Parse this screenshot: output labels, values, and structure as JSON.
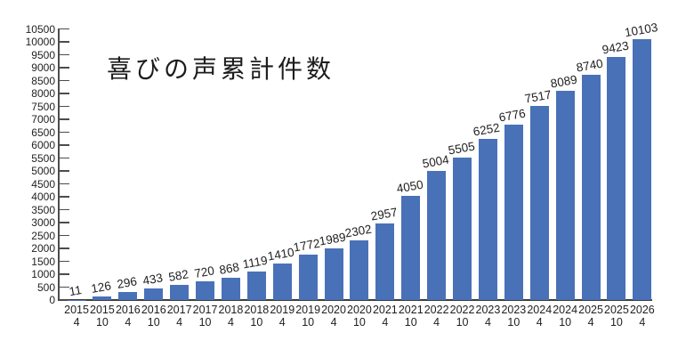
{
  "title": "喜びの声累計件数",
  "colors": {
    "bar": "#4971b8",
    "axis": "#4c4c4c",
    "baseline": "#3d3d3d",
    "text": "#1f1f1f",
    "background": "#ffffff"
  },
  "chart_data": {
    "type": "bar",
    "title": "喜びの声累計件数",
    "categories": [
      "2015/4",
      "2015/10",
      "2016/4",
      "2016/10",
      "2017/4",
      "2017/10",
      "2018/4",
      "2018/10",
      "2019/4",
      "2019/10",
      "2020/4",
      "2020/10",
      "2021/4",
      "2021/10",
      "2022/4",
      "2022/10",
      "2023/4",
      "2023/10",
      "2024/4",
      "2024/10",
      "2025/4",
      "2025/10",
      "2026/4"
    ],
    "values": [
      11,
      126,
      296,
      433,
      582,
      720,
      868,
      1119,
      1410,
      1772,
      1989,
      2302,
      2957,
      4050,
      5004,
      5505,
      6252,
      6776,
      7517,
      8089,
      8740,
      9423,
      10103
    ],
    "xlabel": "",
    "ylabel": "",
    "ylim": [
      0,
      10500
    ],
    "ytick_step": 500,
    "grid": false,
    "legend": null,
    "data_labels": true,
    "tick_style": "inward"
  }
}
